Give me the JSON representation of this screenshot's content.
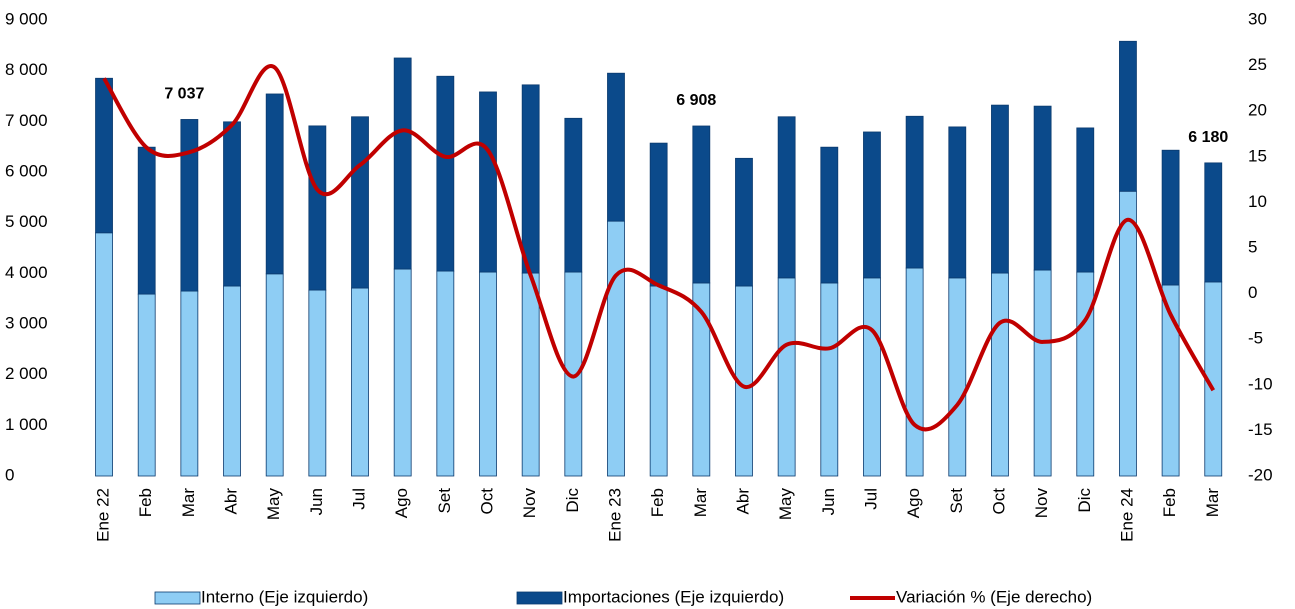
{
  "chart_data": {
    "type": "bar-line",
    "categories": [
      "Ene 22",
      "Feb",
      "Mar",
      "Abr",
      "May",
      "Jun",
      "Jul",
      "Ago",
      "Set",
      "Oct",
      "Nov",
      "Dic",
      "Ene 23",
      "Feb",
      "Mar",
      "Abr",
      "May",
      "Jun",
      "Jul",
      "Ago",
      "Set",
      "Oct",
      "Nov",
      "Dic",
      "Ene 24",
      "Feb",
      "Mar"
    ],
    "series": [
      {
        "name": "Interno (Eje izquierdo)",
        "color": "#8ecdf4",
        "stacked": true,
        "values": [
          4800,
          3590,
          3650,
          3750,
          3990,
          3670,
          3710,
          4085,
          4045,
          4025,
          4005,
          4025,
          5030,
          3750,
          3810,
          3750,
          3910,
          3810,
          3910,
          4105,
          3910,
          4005,
          4065,
          4025,
          5620,
          3770,
          3830
        ]
      },
      {
        "name": "Importaciones (Eje izquierdo)",
        "color": "#0b4a8b",
        "stacked": true,
        "values": [
          3050,
          2900,
          3387,
          3240,
          3550,
          3240,
          3380,
          4165,
          3845,
          3555,
          3715,
          3035,
          2920,
          2820,
          3098,
          2520,
          3180,
          2680,
          2880,
          2995,
          2980,
          3315,
          3235,
          2845,
          2960,
          2660,
          2350
        ]
      },
      {
        "name": "Variación % (Eje derecho)",
        "color": "#c00000",
        "axis": "y2",
        "type": "line",
        "values": [
          23.6,
          16.0,
          15.5,
          18.5,
          24.8,
          11.4,
          14.1,
          17.9,
          15.0,
          15.7,
          2.0,
          -9.1,
          2.0,
          0.9,
          -2.0,
          -10.2,
          -5.6,
          -6.0,
          -4.0,
          -14.4,
          -12.2,
          -3.2,
          -5.3,
          -2.9,
          8.1,
          -2.3,
          -10.6
        ]
      }
    ],
    "total_labels": [
      null,
      null,
      "7 037",
      null,
      null,
      null,
      null,
      null,
      null,
      null,
      null,
      null,
      null,
      null,
      "6 908",
      null,
      null,
      null,
      null,
      null,
      null,
      null,
      null,
      null,
      null,
      null,
      "6 180"
    ],
    "ylim": [
      0,
      9000
    ],
    "yticks": [
      0,
      {
        "value": 1000,
        "label": "1 000"
      },
      {
        "value": 2000,
        "label": "2 000"
      },
      {
        "value": 3000,
        "label": "3 000"
      },
      {
        "value": 4000,
        "label": "4 000"
      },
      {
        "value": 5000,
        "label": "5 000"
      },
      {
        "value": 6000,
        "label": "6 000"
      },
      {
        "value": 7000,
        "label": "7 000"
      },
      {
        "value": 8000,
        "label": "8 000"
      },
      {
        "value": 9000,
        "label": "9 000"
      }
    ],
    "y2lim": [
      -20,
      30
    ],
    "y2ticks": [
      -20,
      -15,
      -10,
      -5,
      0,
      5,
      10,
      15,
      20,
      25,
      30
    ],
    "legend": "bottom"
  }
}
